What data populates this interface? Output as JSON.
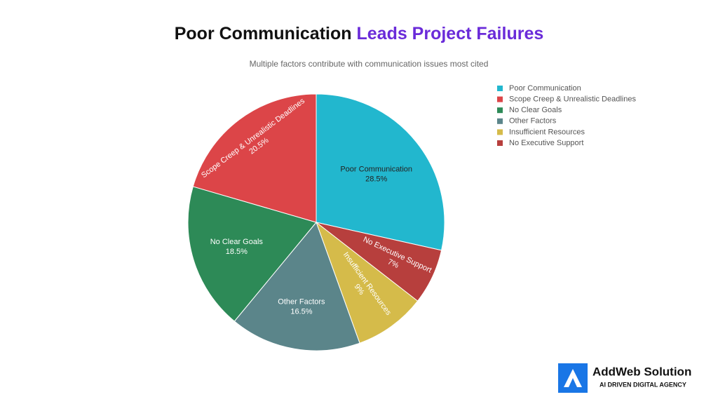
{
  "chart_data": {
    "type": "pie",
    "title": [
      "Poor Communication",
      "Leads Project Failures"
    ],
    "subtitle": "Multiple factors contribute with communication issues most cited",
    "categories": [
      "Poor Communication",
      "Scope Creep & Unrealistic Deadlines",
      "No Clear Goals",
      "Other Factors",
      "Insufficient Resources",
      "No Executive Support"
    ],
    "values": [
      28.5,
      20.5,
      18.5,
      16.5,
      9,
      7
    ],
    "value_labels": [
      "28.5%",
      "20.5%",
      "18.5%",
      "16.5%",
      "9%",
      "7%"
    ],
    "colors": [
      "#22b7ce",
      "#dc4548",
      "#2d8a57",
      "#5b858a",
      "#d5bb4a",
      "#b73f3d"
    ],
    "legend": "top-right"
  },
  "branding": {
    "name": "AddWeb Solution",
    "tagline": "AI DRIVEN DIGITAL AGENCY"
  }
}
